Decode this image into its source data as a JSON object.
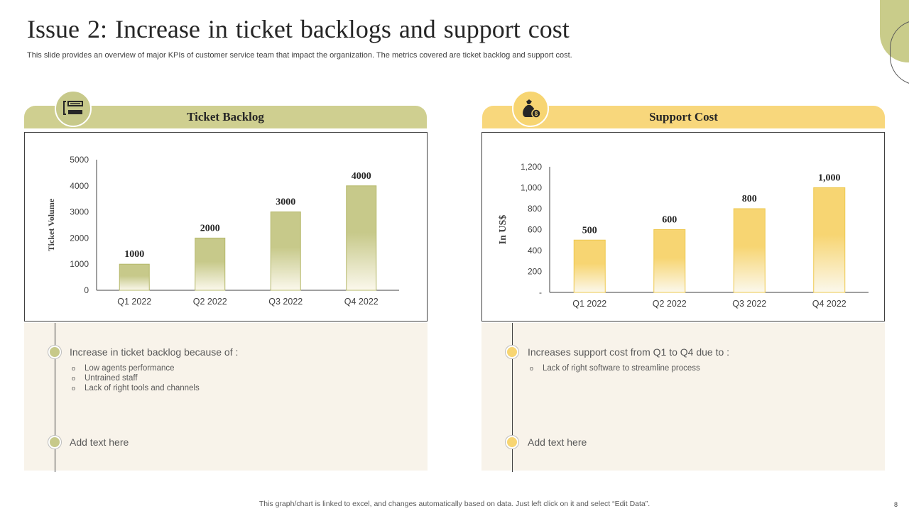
{
  "title": "Issue 2: Increase in ticket backlogs and support cost",
  "subtitle": "This slide provides an overview of major KPIs of customer service team that impact the organization. The metrics covered are ticket backlog and support cost.",
  "left_panel": {
    "header": "Ticket Backlog",
    "icon": "list-icon",
    "point1": "Increase in ticket backlog because of :",
    "sub_items": [
      "Low agents performance",
      "Untrained staff",
      "Lack of right tools and channels"
    ],
    "point2": "Add text here"
  },
  "right_panel": {
    "header": "Support Cost",
    "icon": "money-bag-icon",
    "point1": "Increases support cost from Q1 to Q4 due to :",
    "sub_items": [
      "Lack of right software to streamline process"
    ],
    "point2": "Add text here"
  },
  "footer": "This graph/chart is linked to excel,  and changes automatically based on data. Just left click on it and select “Edit Data”.",
  "page_number": "8",
  "colors": {
    "olive": "#c7c98a",
    "yellow": "#f7d572",
    "panel_bg": "#f8f3ea"
  },
  "chart_data": [
    {
      "type": "bar",
      "categories": [
        "Q1 2022",
        "Q2 2022",
        "Q3 2022",
        "Q4 2022"
      ],
      "values": [
        1000,
        2000,
        3000,
        4000
      ],
      "data_labels": [
        "1000",
        "2000",
        "3000",
        "4000"
      ],
      "ylabel": "Ticket Volume",
      "ylim": [
        0,
        5000
      ],
      "yticks": [
        "0",
        "1000",
        "2000",
        "3000",
        "4000",
        "5000"
      ],
      "color": "#c7c98a",
      "grid": false
    },
    {
      "type": "bar",
      "categories": [
        "Q1 2022",
        "Q2 2022",
        "Q3 2022",
        "Q4 2022"
      ],
      "values": [
        500,
        600,
        800,
        1000
      ],
      "data_labels": [
        "500",
        "600",
        "800",
        "1,000"
      ],
      "ylabel": "In US$",
      "ylim": [
        0,
        1200
      ],
      "yticks": [
        "-",
        "200",
        "400",
        "600",
        "800",
        "1,000",
        "1,200"
      ],
      "color": "#f7d572",
      "grid": false
    }
  ]
}
